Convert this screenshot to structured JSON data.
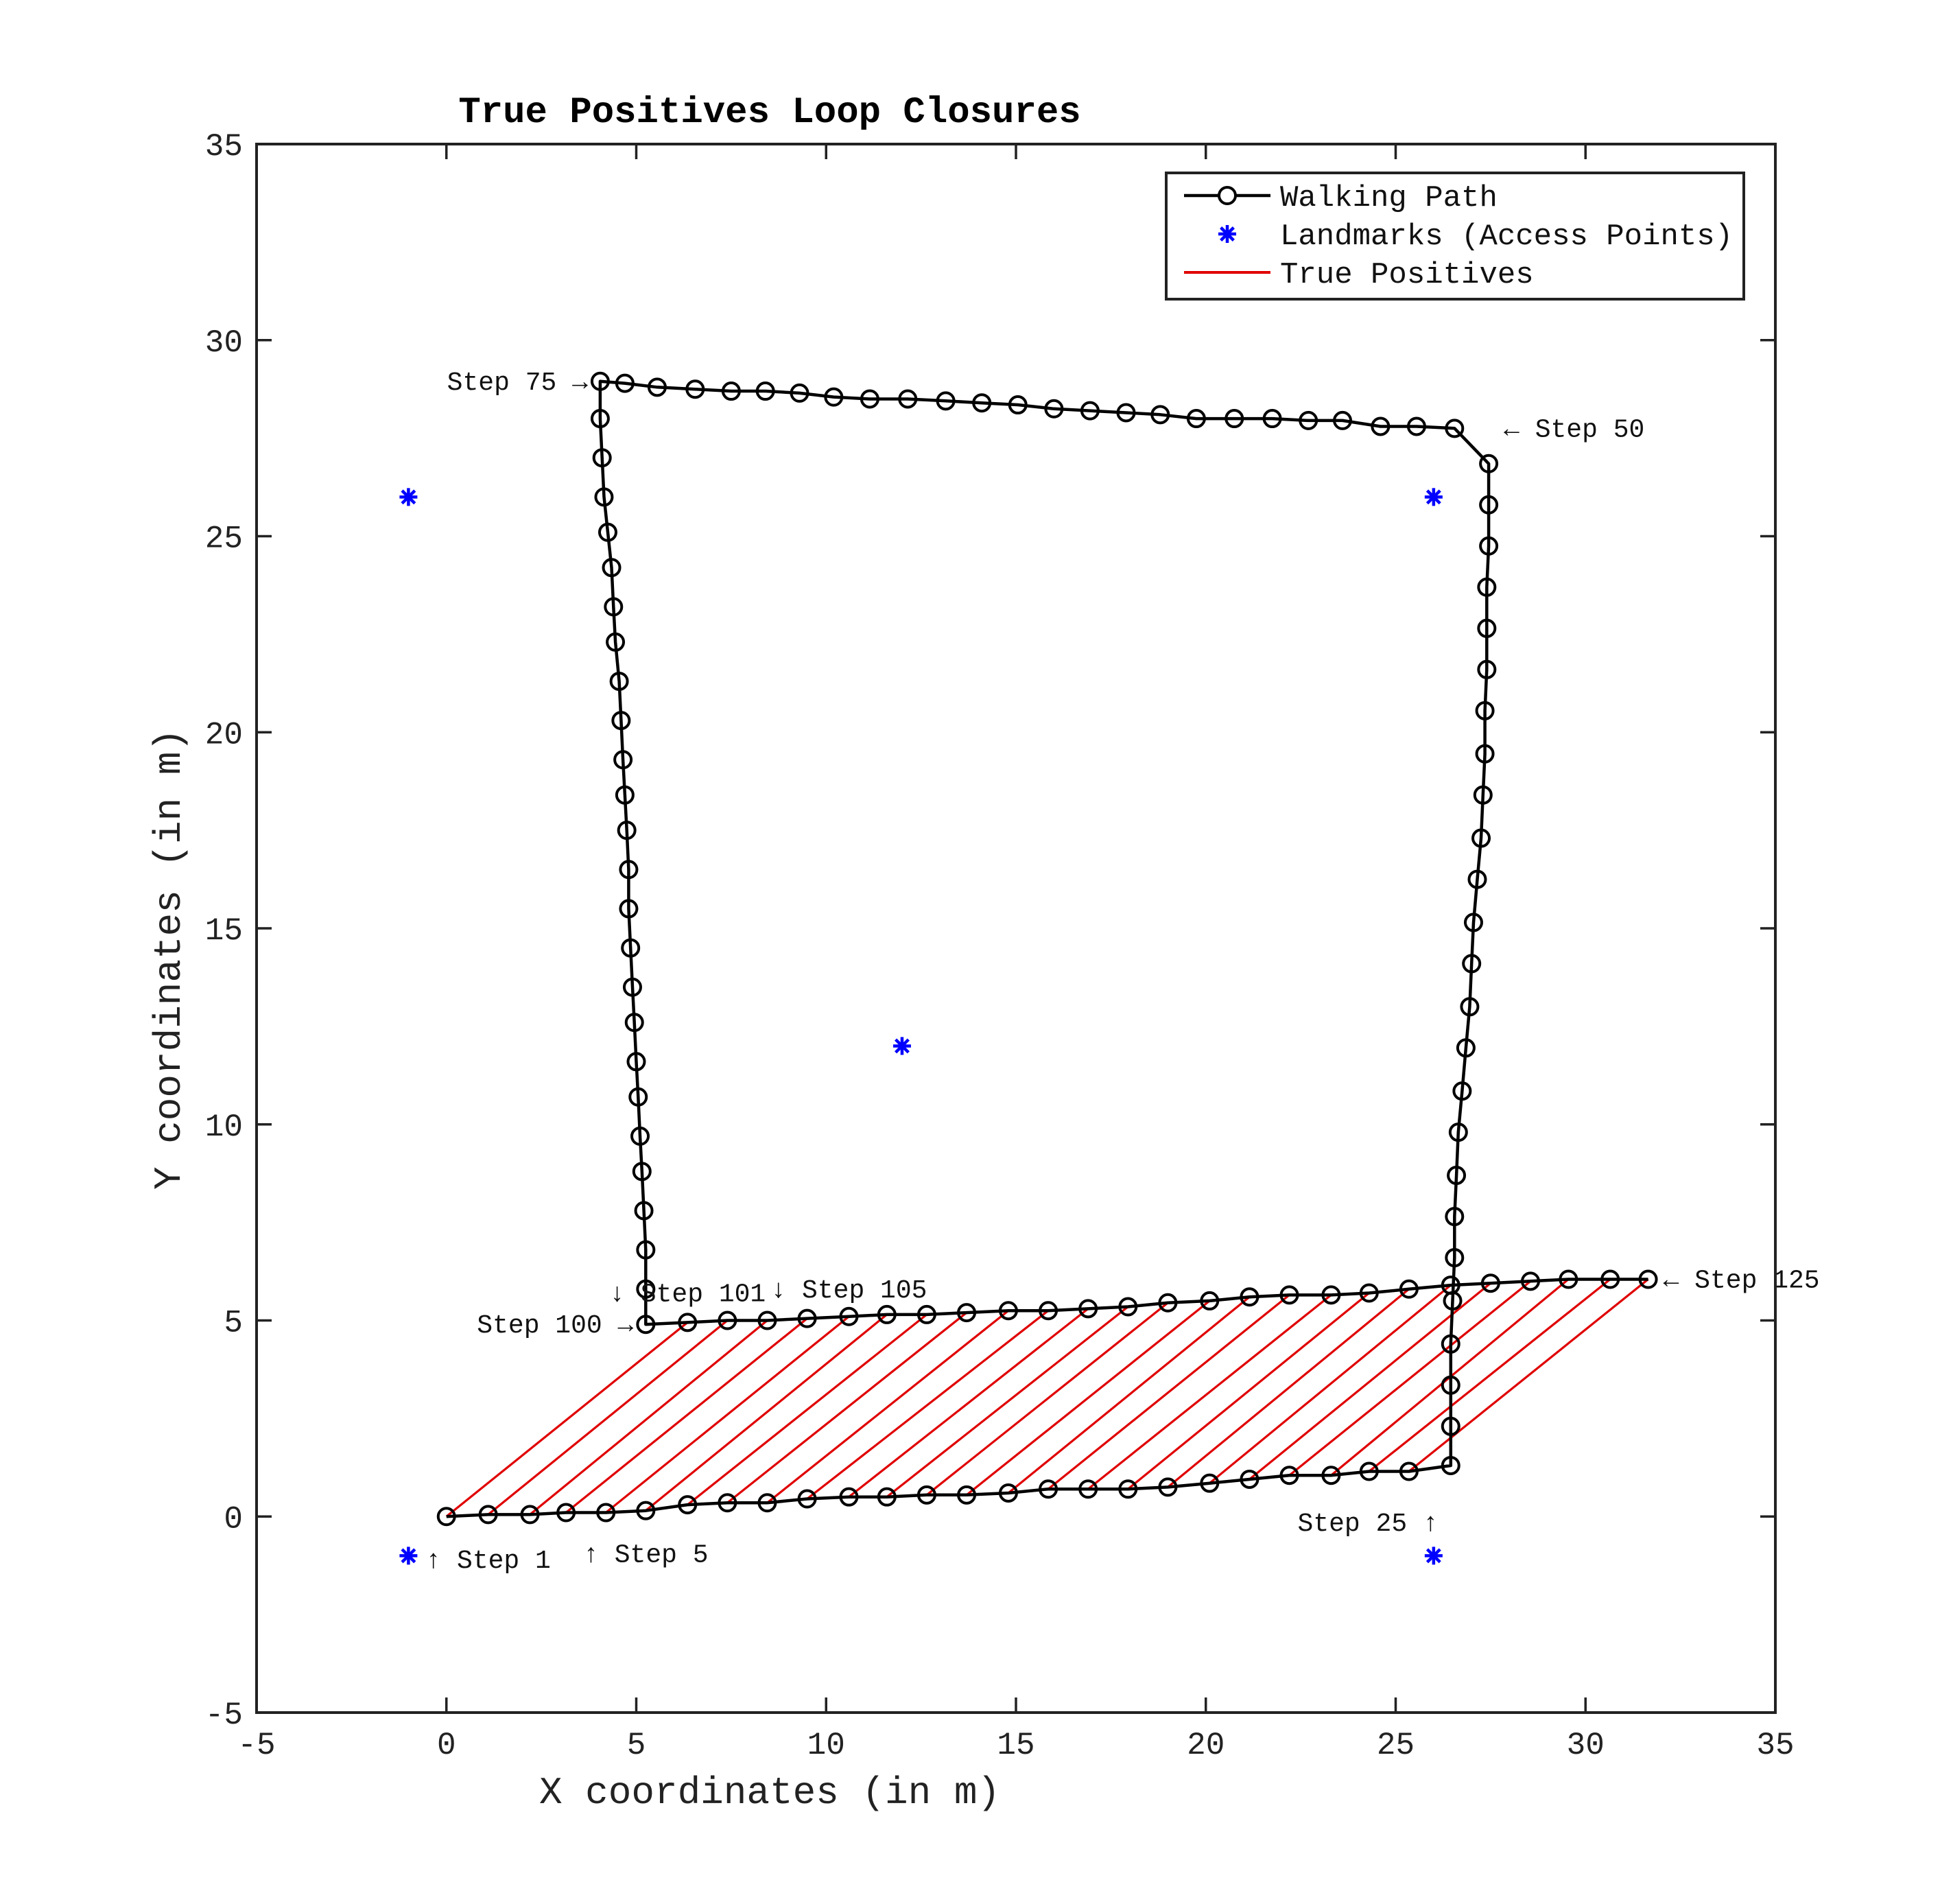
{
  "chart_data": {
    "type": "line",
    "title": "True Positives Loop Closures",
    "xlabel": "X coordinates (in m)",
    "ylabel": "Y coordinates (in m)",
    "xlim": [
      -5,
      35
    ],
    "ylim": [
      -5,
      35
    ],
    "xticks": [
      "-5",
      "0",
      "5",
      "10",
      "15",
      "20",
      "25",
      "30",
      "35"
    ],
    "yticks": [
      "-5",
      "0",
      "5",
      "10",
      "15",
      "20",
      "25",
      "30",
      "35"
    ],
    "grid": false,
    "legend_position": "top-right",
    "legend": [
      {
        "label": "Walking Path",
        "marker": "circle-line",
        "color": "#000000"
      },
      {
        "label": "Landmarks (Access Points)",
        "marker": "asterisk",
        "color": "#0000ff"
      },
      {
        "label": "True Positives",
        "marker": "line",
        "color": "#e00000"
      }
    ],
    "colors": {
      "path": "#000000",
      "landmark": "#0000ff",
      "true_positive": "#e00000"
    },
    "walking_path": {
      "x": [
        0.0,
        1.1,
        2.2,
        3.15,
        4.2,
        5.25,
        6.35,
        7.4,
        8.45,
        9.5,
        10.6,
        11.6,
        12.65,
        13.7,
        14.8,
        15.85,
        16.9,
        17.95,
        19.0,
        20.1,
        21.15,
        22.2,
        23.3,
        24.3,
        25.35,
        26.45,
        26.45,
        26.45,
        26.45,
        26.5,
        26.55,
        26.55,
        26.6,
        26.65,
        26.75,
        26.85,
        26.95,
        27.0,
        27.05,
        27.15,
        27.25,
        27.3,
        27.35,
        27.35,
        27.4,
        27.4,
        27.4,
        27.45,
        27.45,
        27.45,
        26.55,
        25.55,
        24.6,
        23.6,
        22.7,
        21.75,
        20.75,
        19.75,
        18.8,
        17.9,
        16.95,
        16.0,
        15.05,
        14.1,
        13.15,
        12.15,
        11.15,
        10.2,
        9.3,
        8.4,
        7.5,
        6.55,
        5.55,
        4.7,
        4.05,
        4.05,
        4.1,
        4.15,
        4.25,
        4.35,
        4.4,
        4.45,
        4.55,
        4.6,
        4.65,
        4.7,
        4.75,
        4.8,
        4.8,
        4.85,
        4.9,
        4.95,
        5.0,
        5.05,
        5.1,
        5.15,
        5.2,
        5.25,
        5.25,
        5.25,
        6.35,
        7.4,
        8.45,
        9.5,
        10.6,
        11.6,
        12.65,
        13.7,
        14.8,
        15.85,
        16.9,
        17.95,
        19.0,
        20.1,
        21.15,
        22.2,
        23.3,
        24.3,
        25.35,
        26.45,
        27.5,
        28.55,
        29.55,
        30.65,
        31.65
      ],
      "y": [
        0.0,
        0.05,
        0.05,
        0.1,
        0.1,
        0.15,
        0.3,
        0.35,
        0.35,
        0.45,
        0.5,
        0.5,
        0.55,
        0.55,
        0.6,
        0.7,
        0.7,
        0.7,
        0.75,
        0.85,
        0.95,
        1.05,
        1.05,
        1.15,
        1.15,
        1.3,
        2.3,
        3.35,
        4.4,
        5.5,
        6.6,
        7.65,
        8.7,
        9.8,
        10.85,
        11.95,
        13.0,
        14.1,
        15.15,
        16.25,
        17.3,
        18.4,
        19.45,
        20.55,
        21.6,
        22.65,
        23.7,
        24.75,
        25.8,
        26.85,
        27.75,
        27.8,
        27.8,
        27.95,
        27.95,
        28.0,
        28.0,
        28.0,
        28.1,
        28.15,
        28.2,
        28.25,
        28.35,
        28.4,
        28.45,
        28.5,
        28.5,
        28.55,
        28.65,
        28.7,
        28.7,
        28.75,
        28.8,
        28.9,
        28.95,
        28.0,
        27.0,
        26.0,
        25.1,
        24.2,
        23.2,
        22.3,
        21.3,
        20.3,
        19.3,
        18.4,
        17.5,
        16.5,
        15.5,
        14.5,
        13.5,
        12.6,
        11.6,
        10.7,
        9.7,
        8.8,
        7.8,
        6.8,
        5.8,
        4.9,
        4.95,
        5.0,
        5.0,
        5.05,
        5.1,
        5.15,
        5.15,
        5.2,
        5.25,
        5.25,
        5.3,
        5.35,
        5.45,
        5.5,
        5.6,
        5.65,
        5.65,
        5.7,
        5.8,
        5.9,
        5.95,
        6.0,
        6.05,
        6.05,
        6.05
      ]
    },
    "landmarks": {
      "x": [
        -1,
        26,
        -1,
        26,
        12
      ],
      "y": [
        26,
        26,
        -1,
        -1,
        12
      ]
    },
    "true_positive_pairs": {
      "from_step": [
        1,
        2,
        3,
        4,
        5,
        6,
        7,
        8,
        9,
        10,
        11,
        12,
        13,
        14,
        15,
        16,
        17,
        18,
        19,
        20,
        21,
        22,
        23,
        24,
        25
      ],
      "to_step": [
        101,
        102,
        103,
        104,
        105,
        106,
        107,
        108,
        109,
        110,
        111,
        112,
        113,
        114,
        115,
        116,
        117,
        118,
        119,
        120,
        121,
        122,
        123,
        124,
        125
      ]
    },
    "annotations": [
      {
        "text": "Step 75 →",
        "x": 4.05,
        "y": 28.95,
        "side": "left"
      },
      {
        "text": "← Step 50",
        "x": 27.45,
        "y": 27.75,
        "side": "right"
      },
      {
        "text": "Step 100 →",
        "x": 5.25,
        "y": 4.9,
        "side": "left"
      },
      {
        "text": "↓ Step 101",
        "x": 6.35,
        "y": 5.7,
        "side": "center"
      },
      {
        "text": "↓ Step 105",
        "x": 10.6,
        "y": 5.8,
        "side": "center"
      },
      {
        "text": "← Step 125",
        "x": 31.65,
        "y": 6.05,
        "side": "right"
      },
      {
        "text": "Step 25 ↑",
        "x": 26.45,
        "y": -0.15,
        "side": "left"
      },
      {
        "text": "↑ Step 1",
        "x": 1.1,
        "y": -1.1,
        "side": "center"
      },
      {
        "text": "↑ Step 5",
        "x": 5.25,
        "y": -0.95,
        "side": "center"
      }
    ]
  }
}
